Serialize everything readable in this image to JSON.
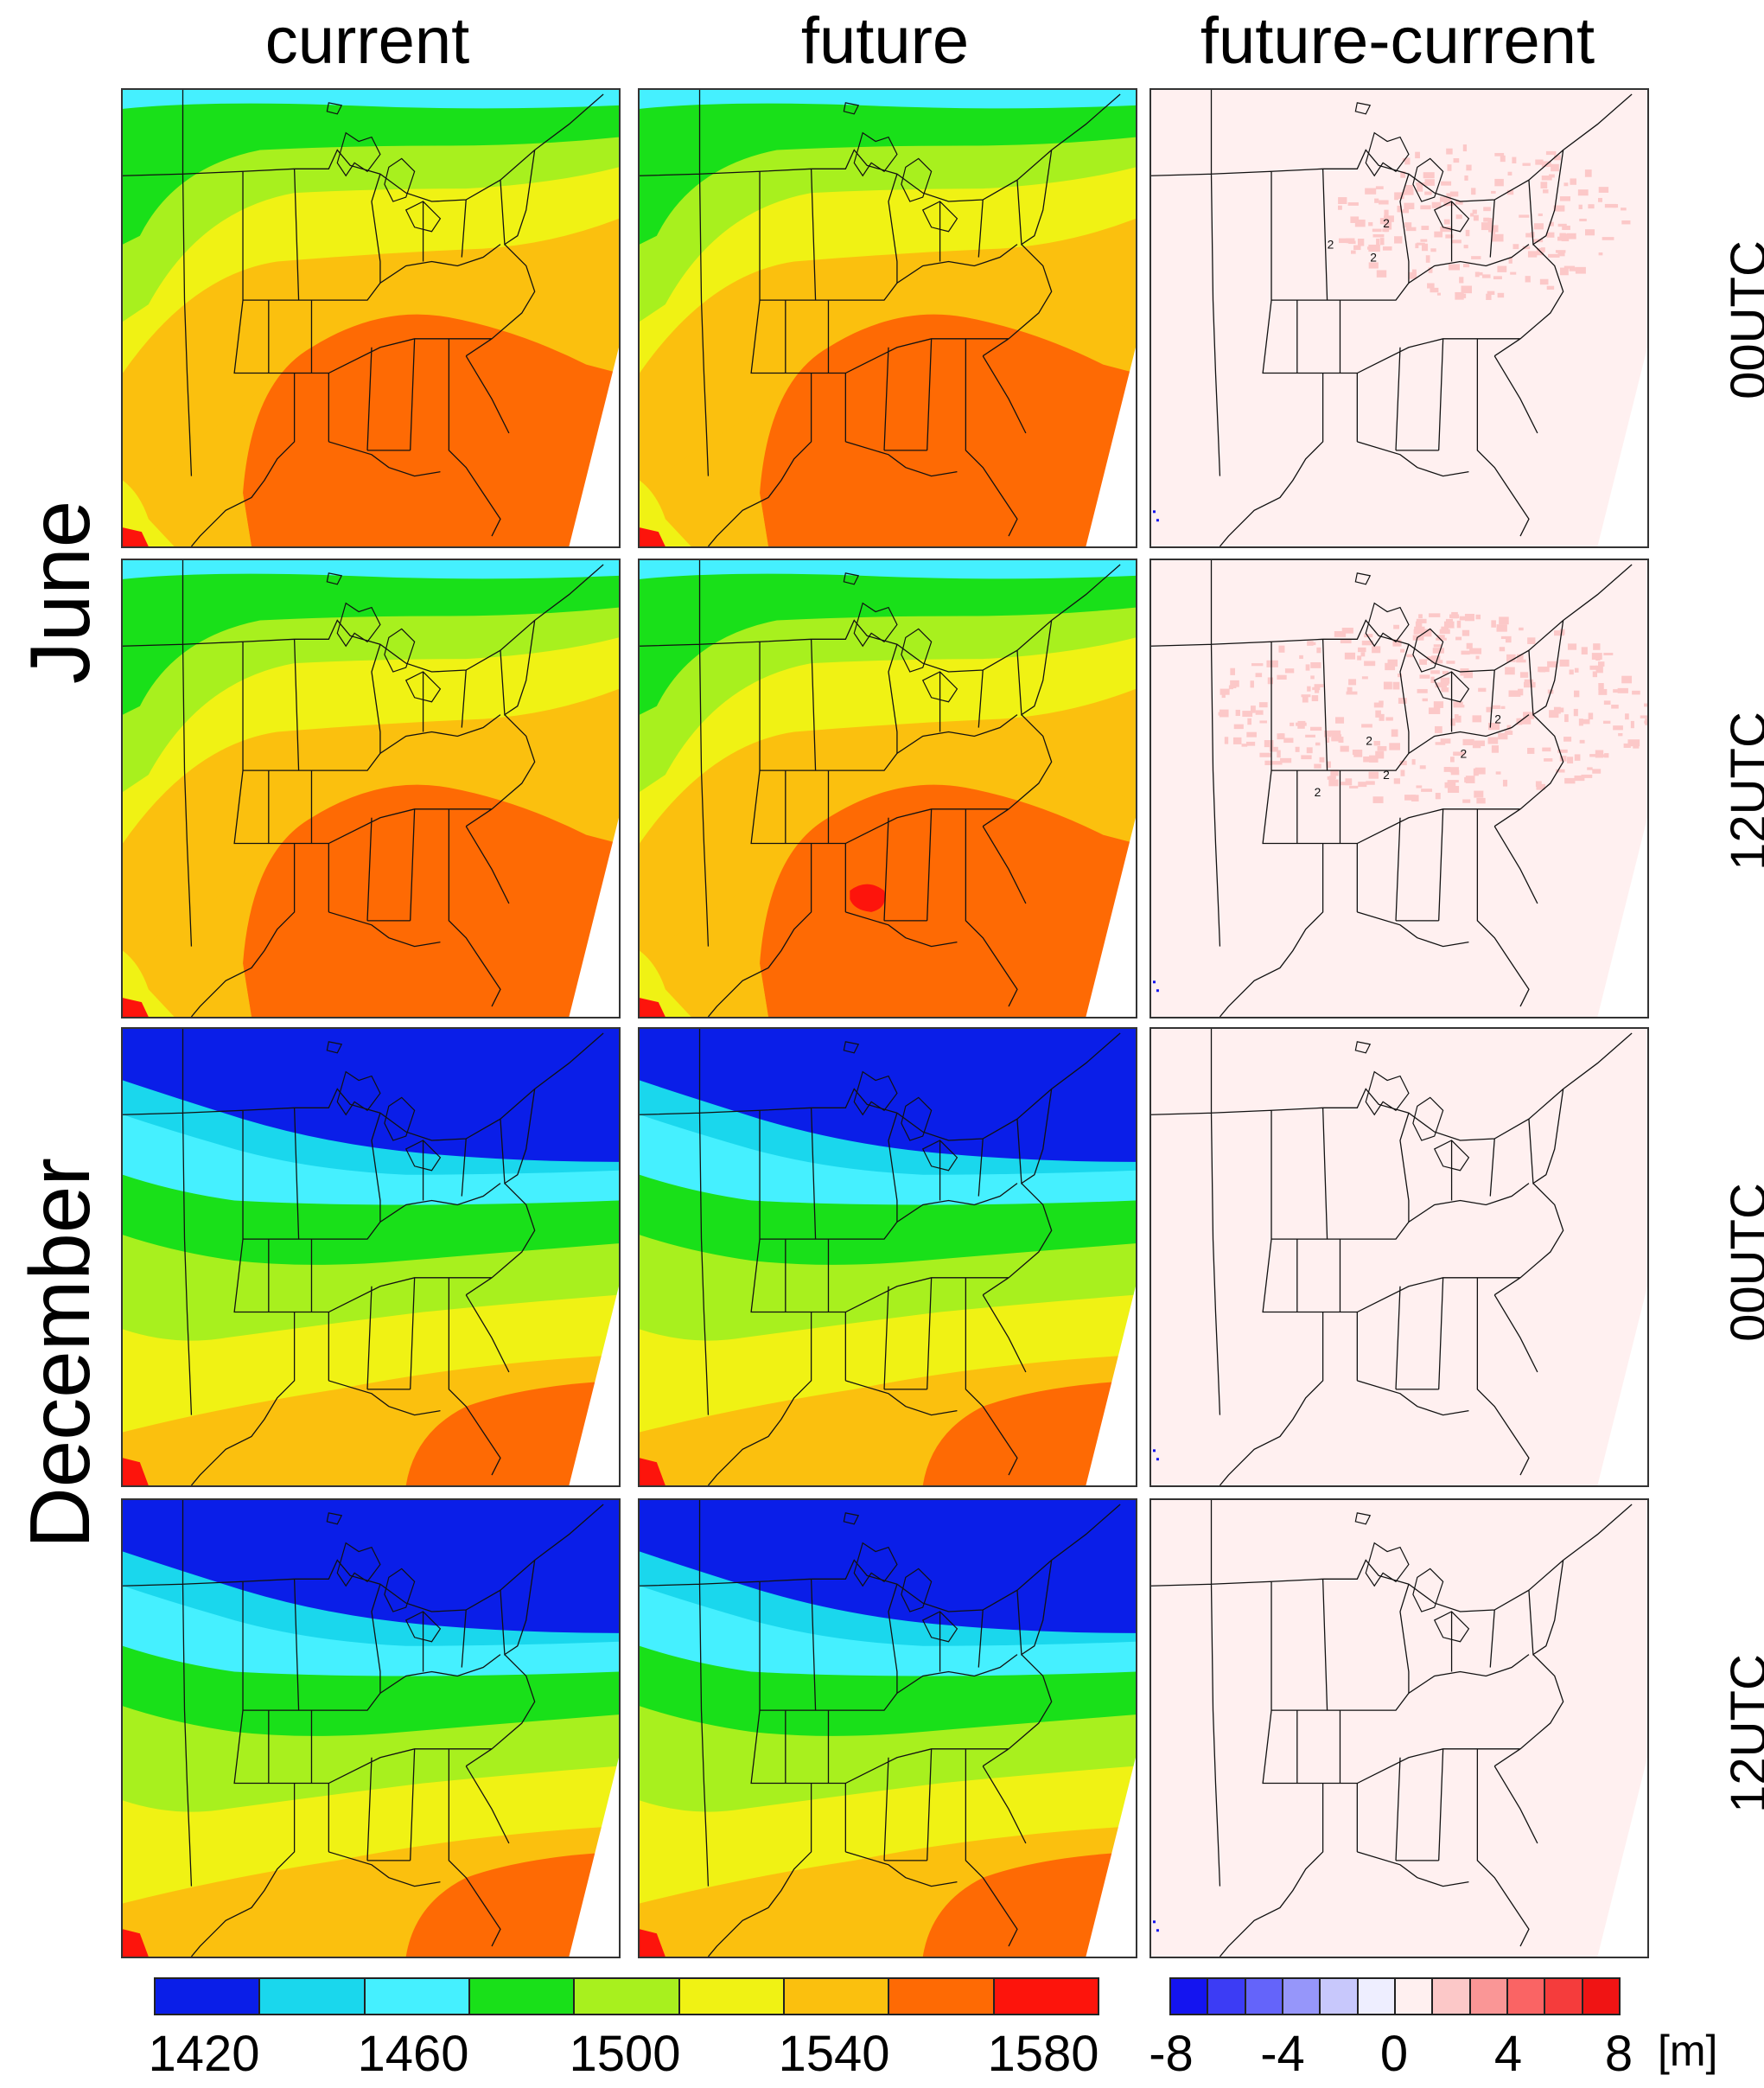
{
  "columns": [
    "current",
    "future",
    "future-current"
  ],
  "months": [
    "June",
    "December"
  ],
  "times": [
    "00UTC",
    "12UTC",
    "00UTC",
    "12UTC"
  ],
  "colors": {
    "abs": [
      "#0a1ee8",
      "#1ad7ed",
      "#45f0ff",
      "#19e019",
      "#a8f01e",
      "#f0f214",
      "#fbc00e",
      "#fe6a04",
      "#fd140c"
    ],
    "diff": [
      "#1414f0",
      "#3c3cf5",
      "#6464fa",
      "#9696fa",
      "#c8c8fc",
      "#eeeeff",
      "#fff0f0",
      "#fcc8c8",
      "#fa9696",
      "#fa6464",
      "#f53c3c",
      "#f01414"
    ]
  },
  "colorbar_abs": {
    "ticks": [
      "1420",
      "1460",
      "1500",
      "1540",
      "1580"
    ]
  },
  "colorbar_diff": {
    "ticks": [
      "-8",
      "-4",
      "0",
      "4",
      "8"
    ],
    "unit": "[m]"
  },
  "contour_labels": [
    "2",
    "2",
    "2",
    "2",
    "2"
  ]
}
